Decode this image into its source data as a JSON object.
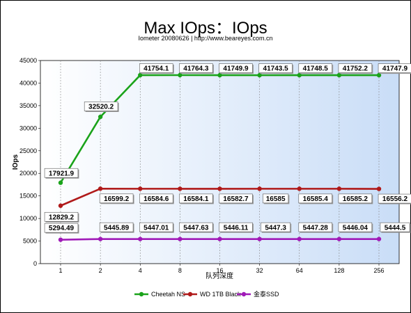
{
  "chart_data": {
    "type": "line",
    "title": "Max IOps：IOps",
    "subtitle": "Iometer 20080626 | http://www.beareyes.com.cn",
    "xlabel": "队列深度",
    "ylabel": "IOps",
    "ylim": [
      0,
      45000
    ],
    "yticks": [
      0,
      5000,
      10000,
      15000,
      20000,
      25000,
      30000,
      35000,
      40000,
      45000
    ],
    "categories": [
      "1",
      "2",
      "4",
      "8",
      "16",
      "32",
      "64",
      "128",
      "256"
    ],
    "grid": true,
    "legend_position": "bottom",
    "series": [
      {
        "name": "Cheetah NS",
        "color": "#1aa31a",
        "values": [
          17921.9,
          32520.2,
          41754.1,
          41764.3,
          41749.9,
          41743.5,
          41748.5,
          41752.2,
          41747.9
        ],
        "labels": [
          "17921.9",
          "32520.2",
          "41754.1",
          "41764.3",
          "41749.9",
          "41743.5",
          "41748.5",
          "41752.2",
          "41747.9"
        ]
      },
      {
        "name": "WD 1TB Black",
        "color": "#b01a1a",
        "values": [
          12829.2,
          16599.2,
          16584.6,
          16584.1,
          16582.7,
          16585,
          16585.4,
          16585.2,
          16556.2
        ],
        "labels": [
          "12829.2",
          "16599.2",
          "16584.6",
          "16584.1",
          "16582.7",
          "16585",
          "16585.4",
          "16585.2",
          "16556.2"
        ]
      },
      {
        "name": "金泰SSD",
        "color": "#a01ab8",
        "values": [
          5294.49,
          5445.89,
          5447.01,
          5447.63,
          5446.11,
          5447.3,
          5447.28,
          5446.04,
          5444.5
        ],
        "labels": [
          "5294.49",
          "5445.89",
          "5447.01",
          "5447.63",
          "5446.11",
          "5447.3",
          "5447.28",
          "5446.04",
          "5444.5"
        ]
      }
    ]
  }
}
